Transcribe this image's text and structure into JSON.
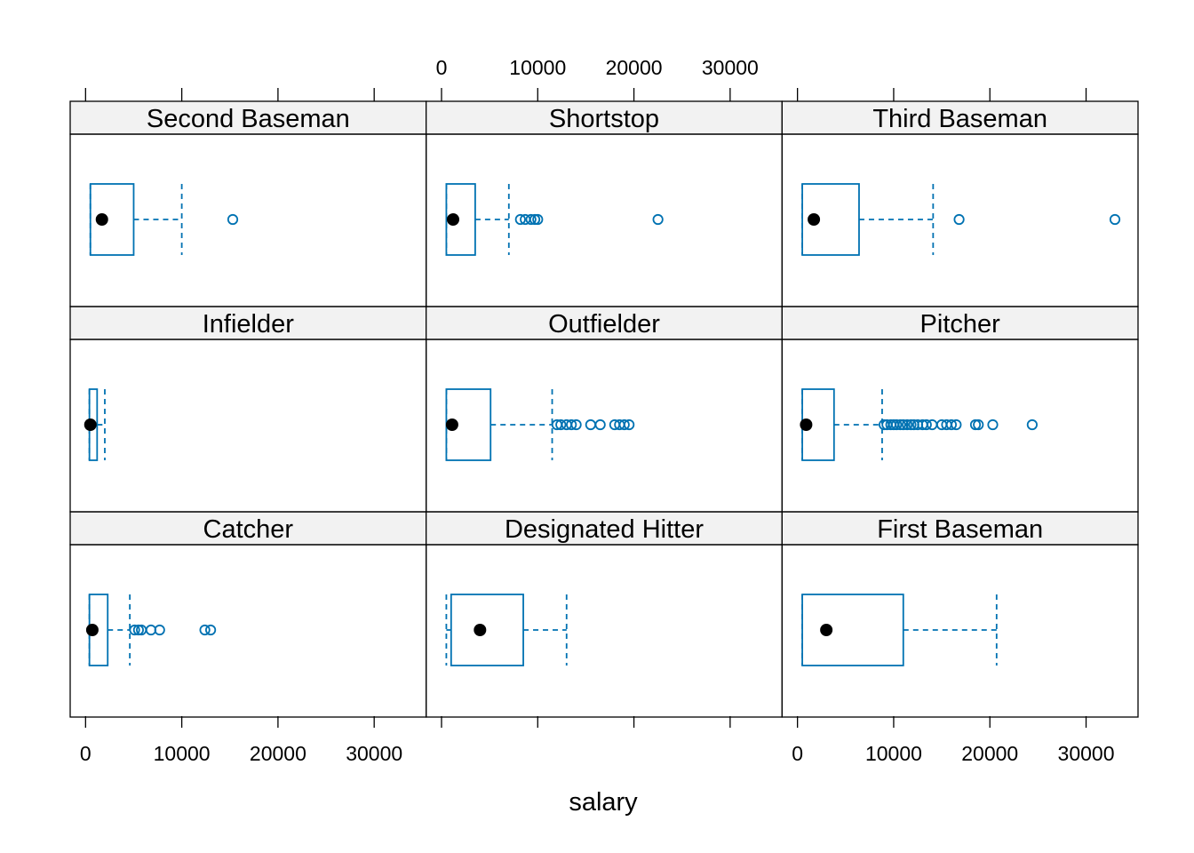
{
  "chart_data": {
    "type": "box",
    "layout": {
      "columns": 3,
      "rows": 3,
      "order": "bottom-to-top, left-to-right"
    },
    "xlabel": "salary",
    "ylabel": "",
    "xlim": [
      -1600,
      35400
    ],
    "x_ticks": [
      0,
      10000,
      20000,
      30000
    ],
    "grid": false,
    "colors": {
      "box": "#0072B2",
      "median": "#000000",
      "strip": "#f2f2f2",
      "frame": "#000000"
    },
    "panels": [
      {
        "name": "Catcher",
        "whisker_low": 400,
        "q1": 400,
        "median": 700,
        "q3": 2300,
        "whisker_high": 4600,
        "outliers": [
          5100,
          5500,
          5800,
          6800,
          7700,
          12400,
          13000
        ]
      },
      {
        "name": "Designated Hitter",
        "whisker_low": 500,
        "q1": 1000,
        "median": 4000,
        "q3": 8500,
        "whisker_high": 13000,
        "outliers": []
      },
      {
        "name": "First Baseman",
        "whisker_low": 500,
        "q1": 500,
        "median": 3000,
        "q3": 11000,
        "whisker_high": 20700,
        "outliers": []
      },
      {
        "name": "Infielder",
        "whisker_low": 400,
        "q1": 400,
        "median": 500,
        "q3": 1200,
        "whisker_high": 2000,
        "outliers": []
      },
      {
        "name": "Outfielder",
        "whisker_low": 500,
        "q1": 500,
        "median": 1100,
        "q3": 5100,
        "whisker_high": 11500,
        "outliers": [
          12000,
          12400,
          13000,
          13500,
          14000,
          15500,
          16500,
          18000,
          18500,
          19000,
          19500
        ]
      },
      {
        "name": "Pitcher",
        "whisker_low": 500,
        "q1": 500,
        "median": 900,
        "q3": 3800,
        "whisker_high": 8800,
        "outliers": [
          9000,
          9300,
          9700,
          10000,
          10300,
          10700,
          11000,
          11400,
          11800,
          12100,
          12500,
          13000,
          13400,
          14000,
          15000,
          15500,
          16000,
          16500,
          18500,
          18800,
          20300,
          24400
        ]
      },
      {
        "name": "Second Baseman",
        "whisker_low": 500,
        "q1": 500,
        "median": 1700,
        "q3": 5000,
        "whisker_high": 10000,
        "outliers": [
          15300
        ]
      },
      {
        "name": "Shortstop",
        "whisker_low": 500,
        "q1": 500,
        "median": 1200,
        "q3": 3500,
        "whisker_high": 7000,
        "outliers": [
          8200,
          8700,
          9300,
          9700,
          10000,
          22500
        ]
      },
      {
        "name": "Third Baseman",
        "whisker_low": 500,
        "q1": 500,
        "median": 1700,
        "q3": 6400,
        "whisker_high": 14100,
        "outliers": [
          16800,
          33000
        ]
      }
    ]
  }
}
